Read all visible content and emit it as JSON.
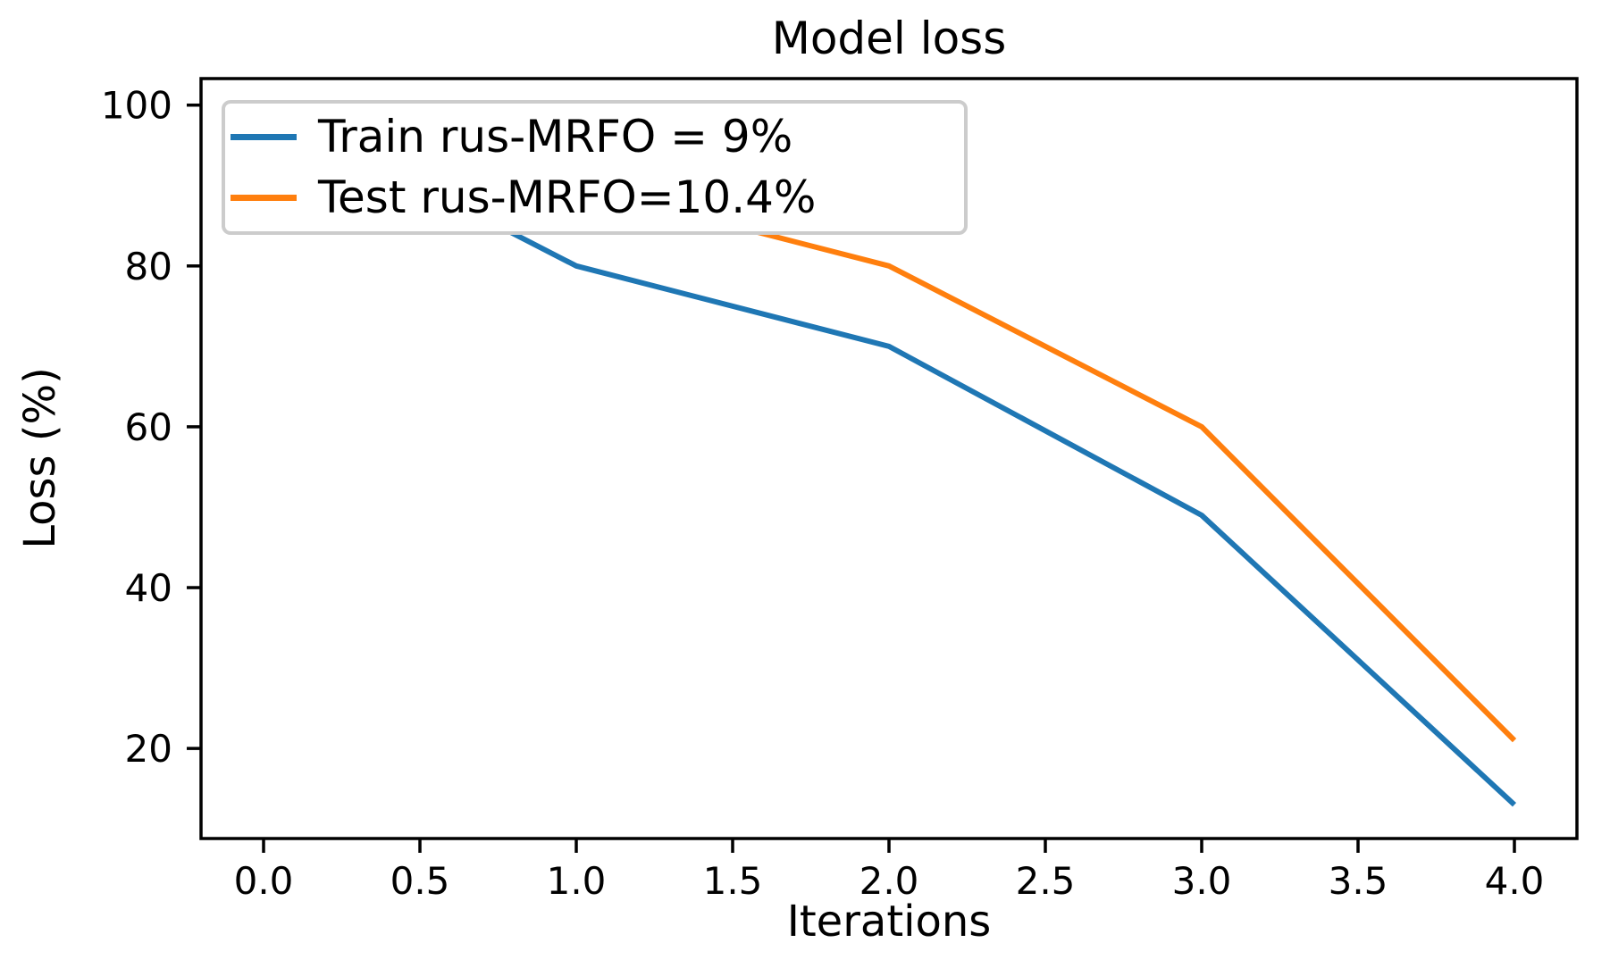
{
  "chart_data": {
    "type": "line",
    "title": "Model loss",
    "xlabel": "Iterations",
    "ylabel": "Loss (%)",
    "x": [
      0,
      1,
      2,
      3,
      4
    ],
    "series": [
      {
        "name": "Train rus-MRFO = 9%",
        "color": "#1f77b4",
        "values": [
          100,
          80,
          70,
          49,
          13
        ]
      },
      {
        "name": "Test rus-MRFO=10.4%",
        "color": "#ff7f0e",
        "values": [
          100,
          90,
          80,
          60,
          21
        ]
      }
    ],
    "xlim": [
      -0.2,
      4.2
    ],
    "ylim": [
      8.8,
      103.3
    ],
    "xticks": [
      0,
      0.5,
      1,
      1.5,
      2,
      2.5,
      3,
      3.5,
      4
    ],
    "xtick_labels": [
      "0.0",
      "0.5",
      "1.0",
      "1.5",
      "2.0",
      "2.5",
      "3.0",
      "3.5",
      "4.0"
    ],
    "yticks": [
      20,
      40,
      60,
      80,
      100
    ],
    "ytick_labels": [
      "20",
      "40",
      "60",
      "80",
      "100"
    ],
    "legend_position": "upper left",
    "grid": false,
    "colors": {
      "frame": "#000000",
      "legend_border": "#cccccc",
      "background": "#ffffff"
    }
  }
}
